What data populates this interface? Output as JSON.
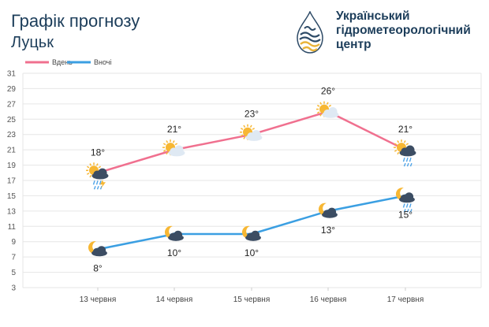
{
  "header": {
    "title": "Графік прогнозу",
    "city": "Луцьк",
    "org_lines": [
      "Український",
      "гідрометеорологічний",
      "центр"
    ]
  },
  "colors": {
    "day": "#f0708f",
    "night": "#3b9fe2",
    "grid": "#e6e6e6",
    "text": "#1c3d5a",
    "sun": "#f7b733",
    "cloud_light": "#dfe9f3",
    "cloud_dark": "#3c4d63",
    "rain": "#4da3e8"
  },
  "chart_data": {
    "type": "line",
    "categories": [
      "13 червня",
      "14 червня",
      "15 червня",
      "16 червня",
      "17 червня"
    ],
    "ylim": [
      3,
      31
    ],
    "yticks": [
      3,
      5,
      7,
      9,
      11,
      13,
      15,
      17,
      19,
      21,
      23,
      25,
      27,
      29,
      31
    ],
    "grid": true,
    "legend_position": "top-left",
    "series": [
      {
        "name": "Вдень",
        "values": [
          18,
          21,
          23,
          26,
          21
        ],
        "labels": [
          "18°",
          "21°",
          "23°",
          "26°",
          "21°"
        ],
        "icons": [
          "sun-cloud-storm-icon",
          "sun-cloud-icon",
          "sun-cloud-icon",
          "sun-cloud-icon",
          "sun-cloud-rain-icon"
        ]
      },
      {
        "name": "Вночі",
        "values": [
          8,
          10,
          10,
          13,
          15
        ],
        "labels": [
          "8°",
          "10°",
          "10°",
          "13°",
          "15°"
        ],
        "icons": [
          "moon-cloud-icon",
          "moon-cloud-icon",
          "moon-cloud-icon",
          "moon-cloud-icon",
          "moon-cloud-rain-icon"
        ]
      }
    ]
  }
}
